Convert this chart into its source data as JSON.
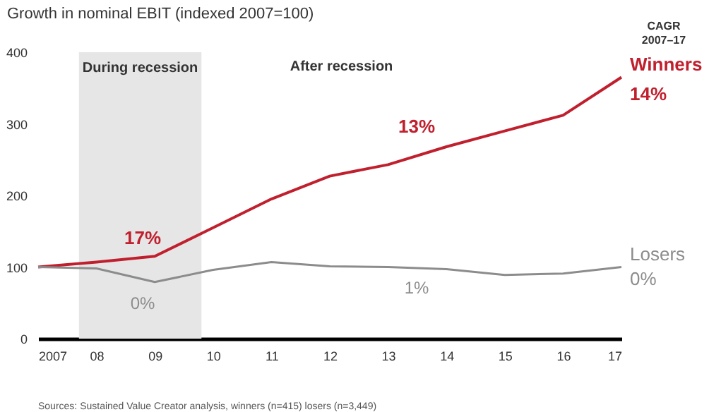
{
  "chart_data": {
    "type": "line",
    "title": "Growth in nominal EBIT (indexed 2007=100)",
    "x": [
      2007,
      2008,
      2009,
      2010,
      2011,
      2012,
      2013,
      2014,
      2015,
      2016,
      2017
    ],
    "xlim": [
      2007,
      2017
    ],
    "xticks": [
      2007,
      {
        "value": 2008,
        "label": "08"
      },
      {
        "value": 2009,
        "label": "09"
      },
      {
        "value": 2010,
        "label": "10"
      },
      {
        "value": 2011,
        "label": "11"
      },
      {
        "value": 2012,
        "label": "12"
      },
      {
        "value": 2013,
        "label": "13"
      },
      {
        "value": 2014,
        "label": "14"
      },
      {
        "value": 2015,
        "label": "15"
      },
      {
        "value": 2016,
        "label": "16"
      },
      {
        "value": 2017,
        "label": "17"
      }
    ],
    "ylim": [
      0,
      400
    ],
    "yticks": [
      0,
      100,
      200,
      300,
      400
    ],
    "series": [
      {
        "name": "Winners",
        "color": "#c0202e",
        "values": [
          100,
          107,
          115,
          155,
          195,
          227,
          243,
          268,
          290,
          312,
          365
        ]
      },
      {
        "name": "Losers",
        "color": "#8c8c8c",
        "values": [
          100,
          98,
          79,
          96,
          107,
          101,
          100,
          97,
          89,
          91,
          100
        ]
      }
    ],
    "bands": [
      {
        "axis": "x",
        "from": 2007.7,
        "to": 2009.8,
        "label": "During recession",
        "color": "#e6e6e6"
      }
    ],
    "annotations": [
      "17%",
      "0%",
      "13%",
      "1%",
      "14%",
      "0%",
      "After recession",
      "CAGR\n2007–17",
      "Sources: Sustained Value Creator analysis, winners (n=415) losers (n=3,449)"
    ],
    "grid": false,
    "marker": "none",
    "line_style": "solid"
  }
}
